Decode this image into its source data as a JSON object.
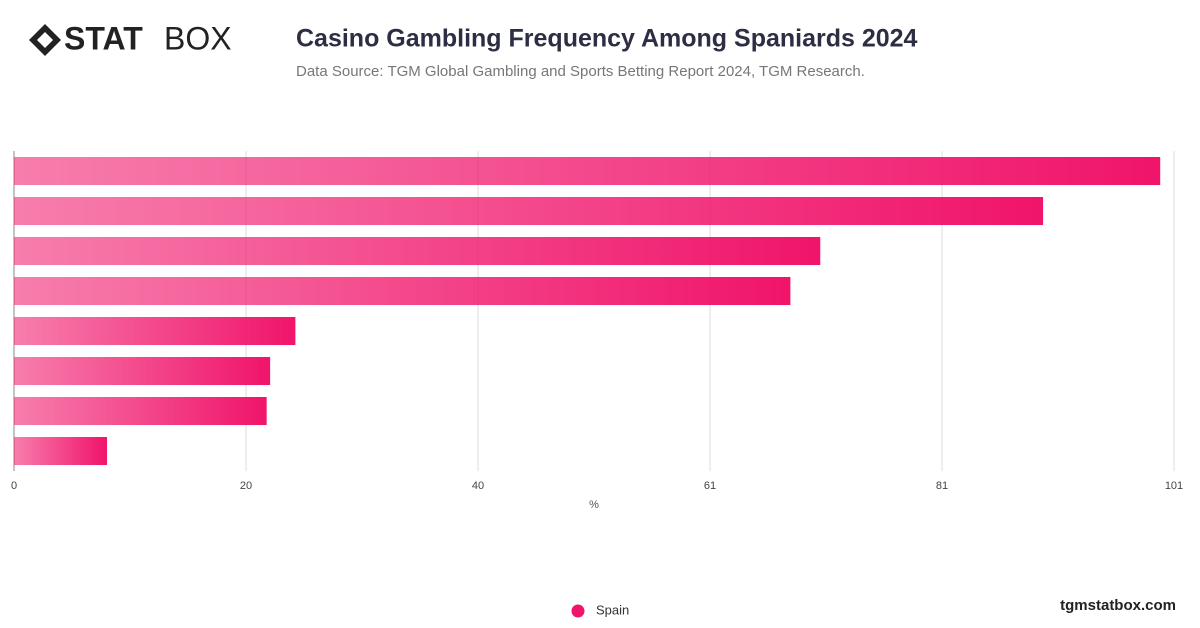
{
  "logo": {
    "bold": "STAT",
    "light": "BOX"
  },
  "footer": "tgmstatbox.com",
  "chart_data": {
    "type": "bar",
    "orientation": "horizontal",
    "title": "Casino Gambling Frequency Among Spaniards 2024",
    "subtitle": "Data Source: TGM Global Gambling and Sports Betting Report 2024, TGM Research.",
    "x_label": "%",
    "categories": [
      null,
      null,
      null,
      null,
      null,
      null,
      null,
      null
    ],
    "series": [
      {
        "name": "Spain",
        "color": "#f0146a",
        "values": [
          99.8,
          89.6,
          70.2,
          67.6,
          24.5,
          22.3,
          22.0,
          8.1
        ]
      }
    ],
    "xlim": [
      0,
      101
    ],
    "xticks": [
      0,
      {
        "value": 20.2,
        "label": "20"
      },
      {
        "value": 40.4,
        "label": "40"
      },
      {
        "value": 60.6,
        "label": "61"
      },
      {
        "value": 80.8,
        "label": "81"
      },
      101
    ],
    "grid": true,
    "legend": "bottom"
  }
}
